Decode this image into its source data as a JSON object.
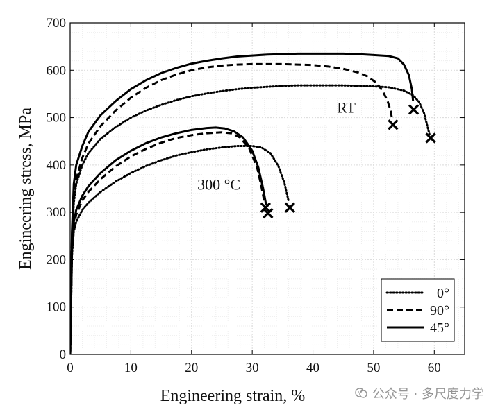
{
  "chart_data": {
    "type": "line",
    "title": "",
    "xlabel": "Engineering strain, %",
    "ylabel": "Engineering stress, MPa",
    "xlim": [
      0,
      65
    ],
    "ylim": [
      0,
      700
    ],
    "x_ticks": [
      0,
      10,
      20,
      30,
      40,
      50,
      60
    ],
    "y_ticks": [
      0,
      100,
      200,
      300,
      400,
      500,
      600,
      700
    ],
    "x_tick_labels": [
      "0",
      "10",
      "20",
      "30",
      "40",
      "50",
      "60"
    ],
    "y_tick_labels": [
      "0",
      "100",
      "200",
      "300",
      "400",
      "500",
      "600",
      "700"
    ],
    "grid": true,
    "minor_grid": true,
    "legend_position": "bottom-right",
    "legend": [
      {
        "label": "0°",
        "style": "dotted"
      },
      {
        "label": "90°",
        "style": "dashed"
      },
      {
        "label": "45°",
        "style": "solid"
      }
    ],
    "annotations": [
      {
        "text": "RT",
        "x": 45.5,
        "y": 510
      },
      {
        "text": "300 °C",
        "x": 24.5,
        "y": 348
      }
    ],
    "series": [
      {
        "group": "RT",
        "style": "solid",
        "legend": "45°",
        "x": [
          0,
          0.3,
          0.6,
          1,
          2,
          3,
          5,
          7.5,
          10,
          12.5,
          15,
          17.5,
          20,
          22.5,
          25,
          27.5,
          30,
          32.5,
          35,
          37.5,
          40,
          42.5,
          45,
          47.5,
          50,
          52.5,
          54,
          55,
          55.8,
          56.3,
          56.5
        ],
        "y": [
          0,
          260,
          360,
          400,
          440,
          470,
          505,
          535,
          560,
          579,
          594,
          605,
          614,
          620,
          625,
          629,
          631,
          633,
          634,
          635,
          635,
          635,
          635,
          634,
          632,
          630,
          625,
          612,
          590,
          560,
          535
        ],
        "fracture_x": [
          56.6
        ],
        "fracture_y": [
          517
        ]
      },
      {
        "group": "RT",
        "style": "dashed",
        "legend": "90°",
        "x": [
          0,
          0.3,
          0.6,
          1,
          2,
          3,
          5,
          7.5,
          10,
          12.5,
          15,
          17.5,
          20,
          22.5,
          25,
          27.5,
          30,
          32.5,
          35,
          37.5,
          40,
          42.5,
          45,
          47.5,
          49,
          50.5,
          51.5,
          52.3,
          52.8,
          53
        ],
        "y": [
          0,
          250,
          330,
          370,
          415,
          445,
          482,
          515,
          542,
          563,
          579,
          591,
          600,
          606,
          610,
          612,
          613,
          613,
          613,
          612,
          611,
          608,
          603,
          595,
          587,
          573,
          556,
          535,
          515,
          500
        ],
        "fracture_x": [
          53.2
        ],
        "fracture_y": [
          485
        ]
      },
      {
        "group": "RT",
        "style": "dotted",
        "legend": "0°",
        "x": [
          0,
          0.3,
          0.6,
          1,
          2,
          3,
          5,
          7.5,
          10,
          12.5,
          15,
          17.5,
          20,
          22.5,
          25,
          27.5,
          30,
          32.5,
          35,
          37.5,
          40,
          42.5,
          45,
          47.5,
          50,
          52.5,
          55,
          56.5,
          57.5,
          58.3,
          58.8,
          59.2
        ],
        "y": [
          0,
          240,
          320,
          360,
          400,
          425,
          455,
          480,
          500,
          515,
          527,
          537,
          545,
          551,
          556,
          560,
          563,
          565,
          567,
          568,
          568,
          568,
          568,
          567,
          566,
          564,
          557,
          547,
          533,
          510,
          485,
          465
        ],
        "fracture_x": [
          59.4
        ],
        "fracture_y": [
          457
        ]
      },
      {
        "group": "300 °C",
        "style": "solid",
        "legend": "45°",
        "x": [
          0,
          0.3,
          0.6,
          1,
          2,
          3,
          5,
          7.5,
          10,
          12.5,
          15,
          17.5,
          20,
          22.5,
          24,
          25.5,
          27,
          28.5,
          30,
          31,
          31.8,
          32.3
        ],
        "y": [
          0,
          220,
          280,
          305,
          335,
          355,
          383,
          410,
          430,
          446,
          458,
          467,
          474,
          478,
          479,
          477,
          471,
          458,
          430,
          395,
          350,
          315
        ],
        "fracture_x": [
          32.6
        ],
        "fracture_y": [
          298
        ]
      },
      {
        "group": "300 °C",
        "style": "dashed",
        "legend": "90°",
        "x": [
          0,
          0.3,
          0.6,
          1,
          2,
          3,
          5,
          7.5,
          10,
          12.5,
          15,
          17.5,
          20,
          22.5,
          25,
          26.5,
          28,
          29.5,
          30.8,
          31.5,
          32
        ],
        "y": [
          0,
          215,
          270,
          295,
          325,
          343,
          370,
          397,
          418,
          434,
          447,
          457,
          463,
          467,
          469,
          467,
          458,
          435,
          395,
          355,
          322
        ],
        "fracture_x": [
          32.2
        ],
        "fracture_y": [
          310
        ]
      },
      {
        "group": "300 °C",
        "style": "dotted",
        "legend": "0°",
        "x": [
          0,
          0.3,
          0.6,
          1,
          2,
          3,
          5,
          7.5,
          10,
          12.5,
          15,
          17.5,
          20,
          22.5,
          25,
          27.5,
          30,
          31.5,
          33,
          34.3,
          35.3,
          36
        ],
        "y": [
          0,
          210,
          260,
          280,
          305,
          320,
          343,
          365,
          383,
          398,
          410,
          420,
          427,
          433,
          437,
          440,
          440,
          437,
          425,
          398,
          362,
          323
        ],
        "fracture_x": [
          36.2
        ],
        "fracture_y": [
          310
        ]
      }
    ]
  },
  "watermark": {
    "text": "公众号 · 多尺度力学"
  },
  "colors": {
    "line": "#000000",
    "axis": "#000000",
    "grid": "#d9d9d9",
    "minor_grid": "#eeeeee",
    "text": "#111111"
  }
}
